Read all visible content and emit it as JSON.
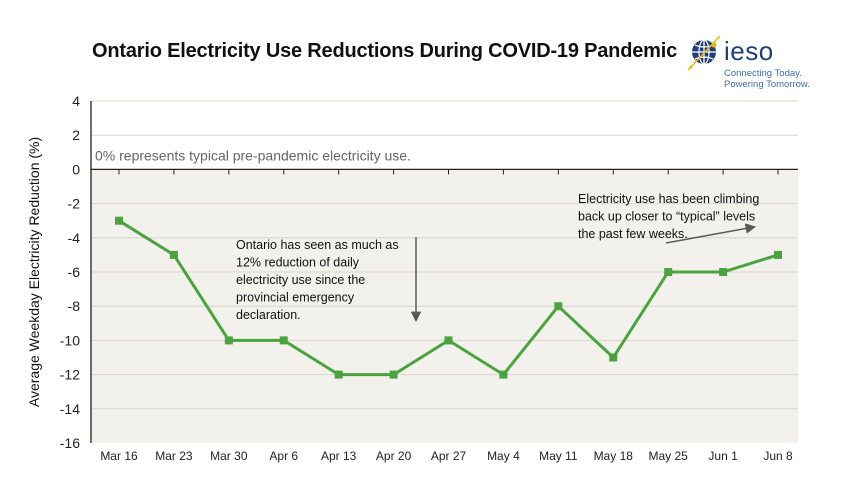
{
  "title": "Ontario Electricity Use Reductions During COVID-19 Pandemic",
  "logo": {
    "name": "ieso",
    "tagline_1": "Connecting Today.",
    "tagline_2": "Powering Tomorrow.",
    "colors": {
      "navy": "#1f3f7a",
      "blue": "#3a6fb0",
      "gold": "#f2b705"
    }
  },
  "colors": {
    "line": "#4aa33e",
    "plot_bg": "#f3f1ec",
    "grid": "#d8d5cf",
    "arrow": "#5a5a5a"
  },
  "chart_data": {
    "type": "line",
    "title": "Ontario Electricity Use Reductions During COVID-19 Pandemic",
    "ylabel": "Average Weekday Electricity  Reduction (%)",
    "xlabel": "",
    "categories": [
      "Mar 16",
      "Mar 23",
      "Mar 30",
      "Apr 6",
      "Apr 13",
      "Apr 20",
      "Apr 27",
      "May 4",
      "May 11",
      "May 18",
      "May 25",
      "Jun 1",
      "Jun 8"
    ],
    "series": [
      {
        "values": [
          -3,
          -5,
          -10,
          -10,
          -12,
          -12,
          -10,
          -12,
          -8,
          -11,
          -6,
          -6,
          -5
        ]
      }
    ],
    "ylim": [
      -16,
      4
    ],
    "yticks": [
      "4",
      "2",
      "0",
      "-2",
      "-4",
      "-6",
      "-8",
      "-10",
      "-12",
      "-14",
      "-16"
    ],
    "grid": true,
    "baseline_note": "0% represents typical pre-pandemic electricity use.",
    "annotations": [
      {
        "lines": [
          "Ontario has seen as much as",
          "12% reduction of daily",
          "electricity use since the",
          "provincial emergency",
          "declaration."
        ]
      },
      {
        "lines": [
          "Electricity use has been climbing",
          "back up closer to “typical” levels",
          "the past few weeks."
        ]
      }
    ]
  }
}
